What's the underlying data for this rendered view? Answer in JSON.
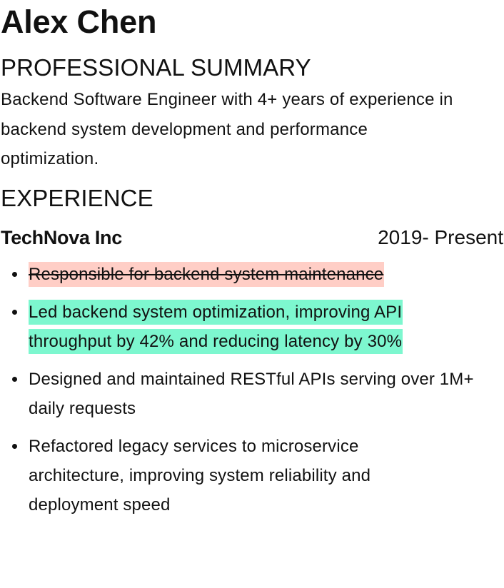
{
  "resume": {
    "name": "Alex Chen",
    "summary_heading": "PROFESSIONAL SUMMARY",
    "summary_text": "Backend Software Engineer with 4+ years of experience in backend system development and performance optimization.",
    "experience_heading": "EXPERIENCE",
    "job": {
      "company": "TechNova Inc",
      "dates": "2019- Present",
      "bullets": [
        {
          "text": "Responsible for backend system maintenance",
          "status": "removed",
          "highlight_color": "#ffcec6"
        },
        {
          "text": "Led backend system optimization, improving API throughput by 42% and reducing latency by 30%",
          "status": "added",
          "highlight_color": "#7df7cf"
        },
        {
          "text": "Designed and maintained RESTful APIs serving over 1M+ daily requests",
          "status": "unchanged"
        },
        {
          "text": "Refactored legacy services to microservice architecture, improving system reliability and deployment speed",
          "status": "unchanged"
        }
      ]
    }
  }
}
